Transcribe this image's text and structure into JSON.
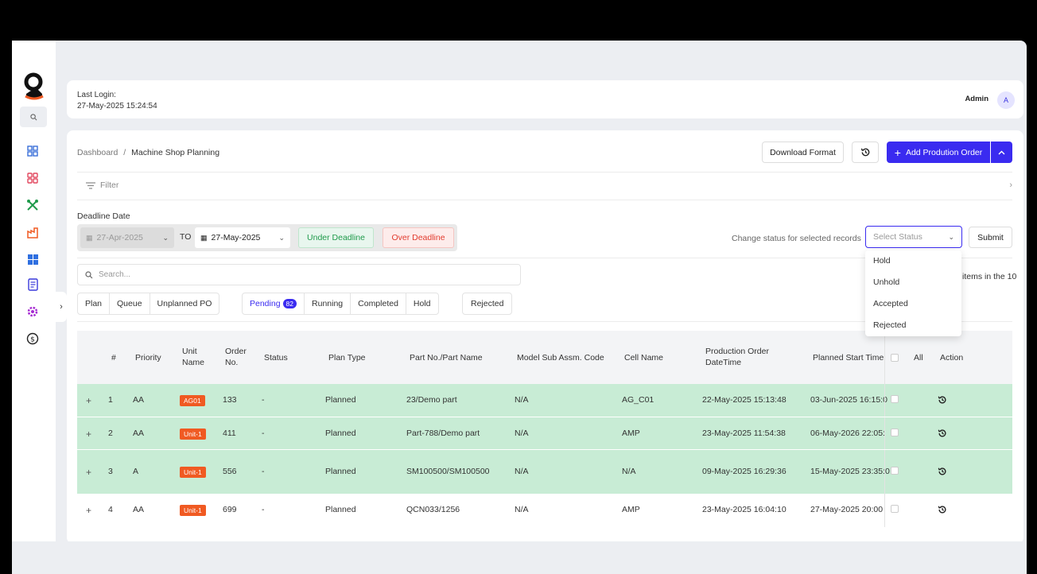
{
  "header": {
    "last_login_label": "Last Login:",
    "last_login_value": "27-May-2025 15:24:54",
    "user_name": "Admin",
    "avatar_letter": "A"
  },
  "sidebar": {
    "search_icon": "search-icon",
    "items": [
      {
        "icon": "dashboard-icon",
        "color": "#3a6fd8"
      },
      {
        "icon": "grid-icon",
        "color": "#e2475e"
      },
      {
        "icon": "tools-icon",
        "color": "#1f9a4b"
      },
      {
        "icon": "factory-icon",
        "color": "#f05a22"
      },
      {
        "icon": "blocks-icon",
        "color": "#2f6fe0"
      },
      {
        "icon": "document-icon",
        "color": "#3a3adb"
      },
      {
        "icon": "gear-icon",
        "color": "#a52ad1"
      },
      {
        "icon": "dollar-icon",
        "color": "#222222"
      }
    ]
  },
  "breadcrumb": {
    "root": "Dashboard",
    "sep": "/",
    "current": "Machine Shop Planning"
  },
  "toolbar": {
    "download_label": "Download Format",
    "add_label": "Add Prodution Order"
  },
  "filter": {
    "label": "Filter"
  },
  "deadline": {
    "label": "Deadline Date",
    "from": "27-Apr-2025",
    "to_label": "TO",
    "to": "27-May-2025",
    "under_label": "Under Deadline",
    "over_label": "Over Deadline"
  },
  "status_change": {
    "label": "Change status for selected records",
    "placeholder": "Select Status",
    "submit_label": "Submit",
    "options": [
      "Hold",
      "Unhold",
      "Accepted",
      "Rejected"
    ]
  },
  "search": {
    "placeholder": "Search..."
  },
  "items_text": "items in the 10",
  "tabs_a": [
    "Plan",
    "Queue",
    "Unplanned PO"
  ],
  "tabs_b": {
    "pending": "Pending",
    "pending_count": "82",
    "running": "Running",
    "completed": "Completed",
    "hold": "Hold"
  },
  "tabs_c": [
    "Rejected"
  ],
  "table": {
    "headers": {
      "num": "#",
      "priority": "Priority",
      "unit_l1": "Unit",
      "unit_l2": "Name",
      "order_l1": "Order",
      "order_l2": "No.",
      "status": "Status",
      "plan_type": "Plan Type",
      "part": "Part No./Part Name",
      "model": "Model Sub Assm. Code",
      "cell": "Cell Name",
      "prod_l1": "Production Order",
      "prod_l2": "DateTime",
      "planned": "Planned Start Time",
      "all": "All",
      "action": "Action"
    },
    "rows": [
      {
        "num": "1",
        "priority": "AA",
        "unit": "AG01",
        "order": "133",
        "status": "-",
        "plan_type": "Planned",
        "part": "23/Demo part",
        "model": "N/A",
        "cell": "AG_C01",
        "prod_dt": "22-May-2025 15:13:48",
        "planned": "03-Jun-2025 16:15:0"
      },
      {
        "num": "2",
        "priority": "AA",
        "unit": "Unit-1",
        "order": "411",
        "status": "-",
        "plan_type": "Planned",
        "part": "Part-788/Demo part",
        "model": "N/A",
        "cell": "AMP",
        "prod_dt": "23-May-2025 11:54:38",
        "planned": "06-May-2026 22:05:"
      },
      {
        "num": "3",
        "priority": "A",
        "unit": "Unit-1",
        "order": "556",
        "status": "-",
        "plan_type": "Planned",
        "part": "SM100500/SM100500",
        "model": "N/A",
        "cell": "N/A",
        "prod_dt": "09-May-2025 16:29:36",
        "planned": "15-May-2025 23:35:0"
      },
      {
        "num": "4",
        "priority": "AA",
        "unit": "Unit-1",
        "order": "699",
        "status": "-",
        "plan_type": "Planned",
        "part": "QCN033/1256",
        "model": "N/A",
        "cell": "AMP",
        "prod_dt": "23-May-2025 16:04:10",
        "planned": "27-May-2025 20:00"
      }
    ]
  },
  "colors": {
    "accent": "#3a2bf0",
    "row_highlight": "#c8ecd5",
    "unit_badge": "#f05a22"
  }
}
